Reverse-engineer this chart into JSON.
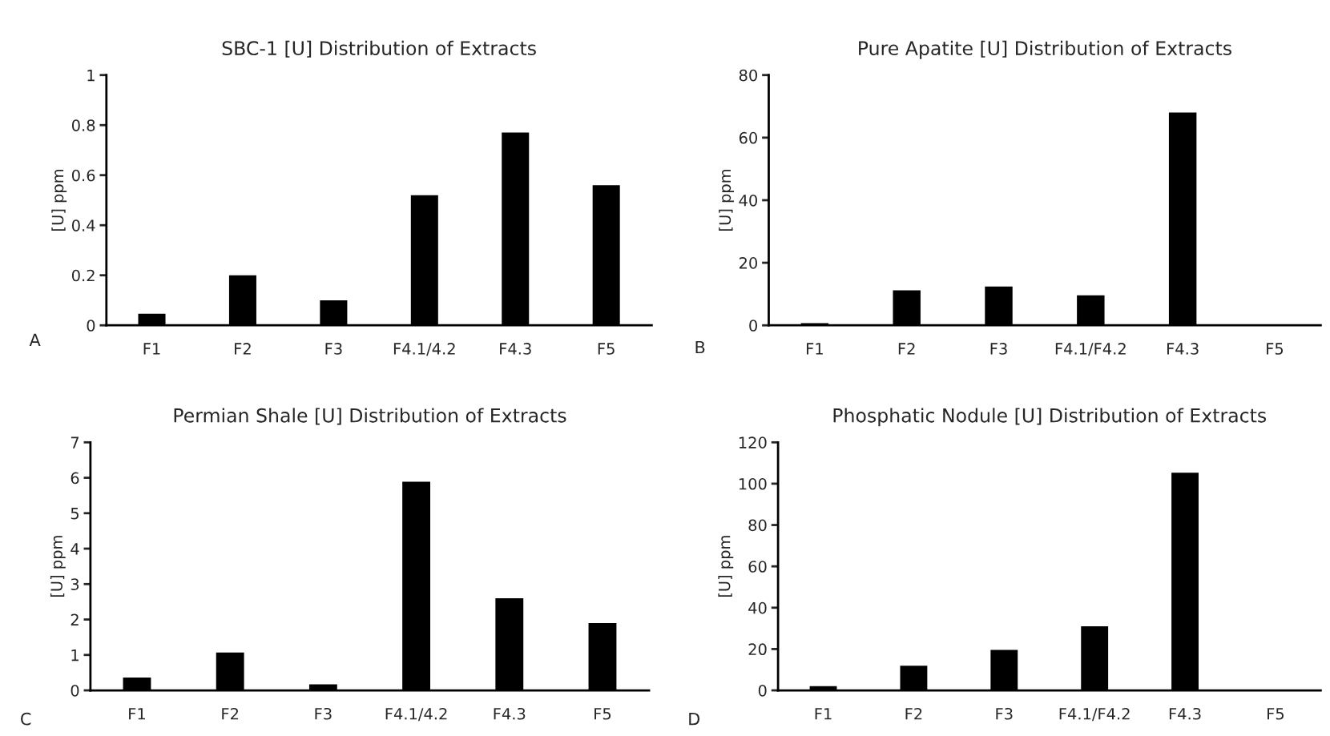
{
  "chart_data": [
    {
      "type": "bar",
      "title": "SBC-1 [U] Distribution of Extracts",
      "ylabel": "[U] ppm",
      "categories": [
        "F1",
        "F2",
        "F3",
        "F4.1/4.2",
        "F4.3",
        "F5"
      ],
      "values": [
        0.046,
        0.2,
        0.1,
        0.52,
        0.77,
        0.56
      ],
      "color": "#000000",
      "ylim": [
        0,
        1
      ],
      "yticks": [
        0,
        0.2,
        0.4,
        0.6,
        0.8,
        1
      ],
      "annotations": [
        "A"
      ]
    },
    {
      "type": "bar",
      "title": "Pure Apatite [U] Distribution of Extracts",
      "ylabel": "[U] ppm",
      "categories": [
        "F1",
        "F2",
        "F3",
        "F4.1/F4.2",
        "F4.3",
        "F5"
      ],
      "values": [
        0.7,
        11.2,
        12.4,
        9.6,
        68,
        0
      ],
      "color": "#000000",
      "ylim": [
        0,
        80
      ],
      "yticks": [
        0,
        20,
        40,
        60,
        80
      ],
      "annotations": [
        "B"
      ]
    },
    {
      "type": "bar",
      "title": "Permian Shale [U] Distribution of Extracts",
      "ylabel": "[U] ppm",
      "categories": [
        "F1",
        "F2",
        "F3",
        "F4.1/4.2",
        "F4.3",
        "F5"
      ],
      "values": [
        0.36,
        1.07,
        0.17,
        5.89,
        2.6,
        1.9
      ],
      "color": "#000000",
      "ylim": [
        0,
        7
      ],
      "yticks": [
        0,
        1,
        2,
        3,
        4,
        5,
        6,
        7
      ],
      "annotations": [
        "C"
      ]
    },
    {
      "type": "bar",
      "title": "Phosphatic Nodule [U] Distribution of Extracts",
      "ylabel": "[U] ppm",
      "categories": [
        "F1",
        "F2",
        "F3",
        "F4.1/F4.2",
        "F4.3",
        "F5"
      ],
      "values": [
        2,
        11.9,
        19.6,
        31,
        105.3,
        0
      ],
      "color": "#000000",
      "ylim": [
        0,
        120
      ],
      "yticks": [
        0,
        20,
        40,
        60,
        80,
        100,
        120
      ],
      "annotations": [
        "D"
      ]
    }
  ]
}
